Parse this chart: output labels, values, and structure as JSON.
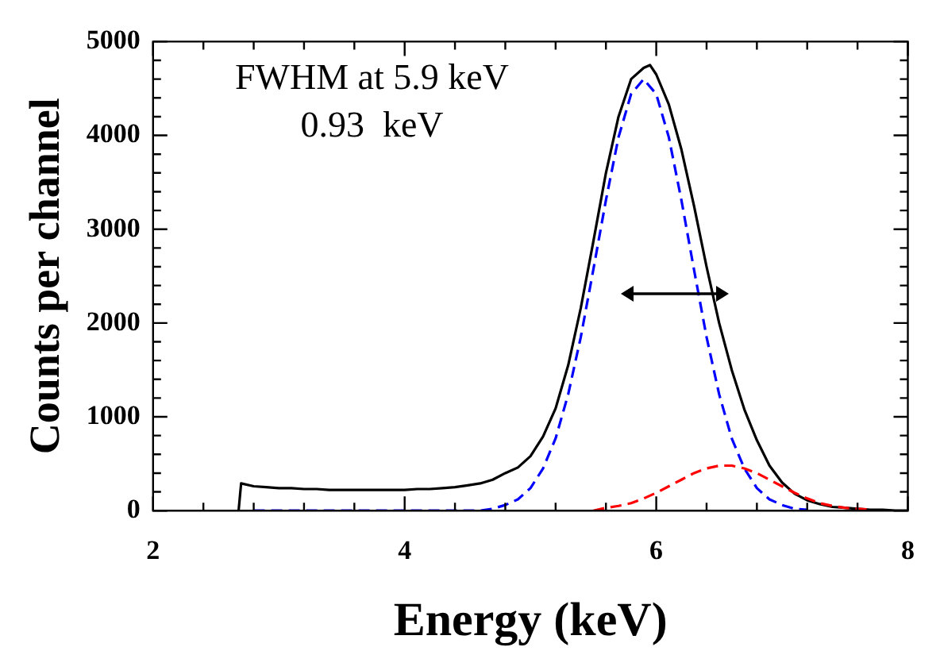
{
  "chart_data": {
    "type": "line",
    "xlabel": "Energy (keV)",
    "ylabel": "Counts per channel",
    "xlim": [
      2,
      8
    ],
    "ylim": [
      0,
      5000
    ],
    "xticks": [
      2,
      {
        "value": 2.4,
        "label": null
      },
      {
        "value": 2.8,
        "label": null
      },
      {
        "value": 3.2,
        "label": null
      },
      {
        "value": 3.6,
        "label": null
      },
      4,
      {
        "value": 4.4,
        "label": null
      },
      {
        "value": 4.8,
        "label": null
      },
      {
        "value": 5.2,
        "label": null
      },
      {
        "value": 5.6,
        "label": null
      },
      6,
      {
        "value": 6.4,
        "label": null
      },
      {
        "value": 6.8,
        "label": null
      },
      {
        "value": 7.2,
        "label": null
      },
      {
        "value": 7.6,
        "label": null
      },
      8
    ],
    "yticks": [
      0,
      {
        "value": 200,
        "label": null
      },
      {
        "value": 400,
        "label": null
      },
      {
        "value": 600,
        "label": null
      },
      {
        "value": 800,
        "label": null
      },
      1000,
      {
        "value": 1200,
        "label": null
      },
      {
        "value": 1400,
        "label": null
      },
      {
        "value": 1600,
        "label": null
      },
      {
        "value": 1800,
        "label": null
      },
      2000,
      {
        "value": 2200,
        "label": null
      },
      {
        "value": 2400,
        "label": null
      },
      {
        "value": 2600,
        "label": null
      },
      {
        "value": 2800,
        "label": null
      },
      3000,
      {
        "value": 3200,
        "label": null
      },
      {
        "value": 3400,
        "label": null
      },
      {
        "value": 3600,
        "label": null
      },
      {
        "value": 3800,
        "label": null
      },
      4000,
      {
        "value": 4200,
        "label": null
      },
      {
        "value": 4400,
        "label": null
      },
      {
        "value": 4600,
        "label": null
      },
      {
        "value": 4800,
        "label": null
      },
      5000
    ],
    "marker": "none",
    "annotations": [
      "FWHM at 5.9 keV",
      "0.93  keV"
    ],
    "series": [
      {
        "color": "#000000",
        "line_style": "solid",
        "x": [
          2.68,
          2.7,
          2.8,
          2.9,
          3.0,
          3.1,
          3.2,
          3.3,
          3.4,
          3.5,
          3.6,
          3.7,
          3.8,
          3.9,
          4.0,
          4.1,
          4.2,
          4.3,
          4.4,
          4.5,
          4.6,
          4.7,
          4.8,
          4.9,
          5.0,
          5.1,
          5.2,
          5.3,
          5.4,
          5.5,
          5.6,
          5.7,
          5.8,
          5.9,
          5.95,
          6.0,
          6.1,
          6.2,
          6.3,
          6.4,
          6.5,
          6.6,
          6.7,
          6.8,
          6.9,
          7.0,
          7.1,
          7.2,
          7.3,
          7.4,
          7.5,
          7.6,
          7.7,
          7.8,
          7.9,
          8.0
        ],
        "values": [
          0,
          290,
          260,
          250,
          240,
          240,
          230,
          230,
          220,
          220,
          220,
          220,
          220,
          220,
          220,
          230,
          230,
          240,
          250,
          270,
          290,
          330,
          400,
          460,
          580,
          790,
          1090,
          1550,
          2160,
          2870,
          3600,
          4200,
          4600,
          4720,
          4750,
          4650,
          4330,
          3850,
          3250,
          2600,
          2000,
          1500,
          1080,
          750,
          480,
          300,
          180,
          110,
          70,
          40,
          30,
          20,
          10,
          10,
          0,
          0
        ]
      },
      {
        "color": "#0000ff",
        "line_style": "dashed",
        "x": [
          2.8,
          4.6,
          4.7,
          4.8,
          4.9,
          5.0,
          5.1,
          5.2,
          5.3,
          5.4,
          5.5,
          5.6,
          5.7,
          5.8,
          5.9,
          6.0,
          6.1,
          6.2,
          6.3,
          6.4,
          6.5,
          6.6,
          6.7,
          6.8,
          6.9,
          7.0,
          7.1,
          7.2
        ],
        "values": [
          0,
          0,
          20,
          60,
          120,
          240,
          450,
          770,
          1240,
          1850,
          2570,
          3310,
          3980,
          4440,
          4600,
          4440,
          3980,
          3310,
          2570,
          1850,
          1240,
          770,
          450,
          240,
          120,
          60,
          20,
          10
        ]
      },
      {
        "color": "#ff0000",
        "line_style": "dashed",
        "x": [
          5.5,
          5.6,
          5.7,
          5.8,
          5.9,
          6.0,
          6.1,
          6.2,
          6.3,
          6.4,
          6.5,
          6.6,
          6.7,
          6.8,
          6.9,
          7.0,
          7.1,
          7.2,
          7.3,
          7.4,
          7.5,
          7.6,
          7.7
        ],
        "values": [
          0,
          30,
          50,
          80,
          130,
          190,
          260,
          330,
          400,
          450,
          480,
          480,
          450,
          400,
          330,
          260,
          190,
          130,
          80,
          50,
          30,
          20,
          10
        ]
      }
    ]
  }
}
